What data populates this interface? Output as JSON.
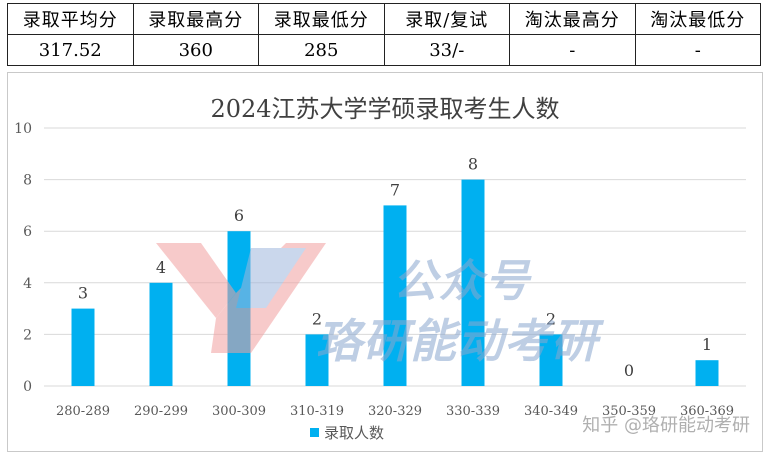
{
  "summary": {
    "headers": [
      "录取平均分",
      "录取最高分",
      "录取最低分",
      "录取/复试",
      "淘汰最高分",
      "淘汰最低分"
    ],
    "values": [
      "317.52",
      "360",
      "285",
      "33/-",
      "-",
      "-"
    ]
  },
  "watermark": {
    "line1": "公众号",
    "line2": "珞研能动考研",
    "credit": "知乎 @珞研能动考研"
  },
  "colors": {
    "bar": "#00b0f0",
    "grid": "#d9d9d9",
    "text": "#595959"
  },
  "chart_data": {
    "type": "bar",
    "title": "2024江苏大学学硕录取考生人数",
    "categories": [
      "280-289",
      "290-299",
      "300-309",
      "310-319",
      "320-329",
      "330-339",
      "340-349",
      "350-359",
      "360-369"
    ],
    "series": [
      {
        "name": "录取人数",
        "values": [
          3,
          4,
          6,
          2,
          7,
          8,
          2,
          0,
          1
        ]
      }
    ],
    "yticks": [
      0,
      2,
      4,
      6,
      8,
      10
    ],
    "ylim": [
      0,
      10
    ],
    "grid": true,
    "legend": "bottom"
  }
}
